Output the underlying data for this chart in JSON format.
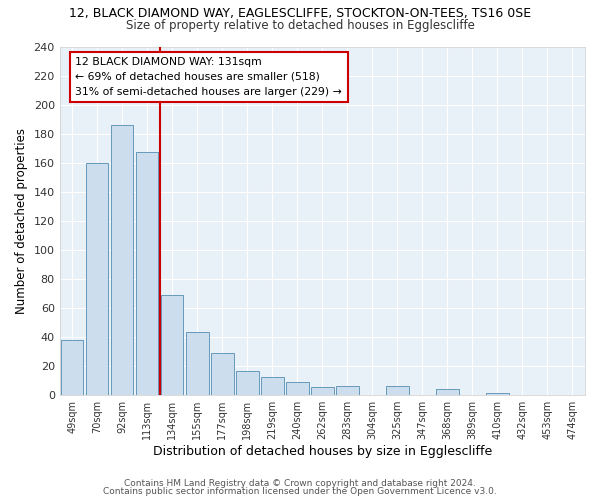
{
  "title1": "12, BLACK DIAMOND WAY, EAGLESCLIFFE, STOCKTON-ON-TEES, TS16 0SE",
  "title2": "Size of property relative to detached houses in Egglescliffe",
  "xlabel": "Distribution of detached houses by size in Egglescliffe",
  "ylabel": "Number of detached properties",
  "bin_labels": [
    "49sqm",
    "70sqm",
    "92sqm",
    "113sqm",
    "134sqm",
    "155sqm",
    "177sqm",
    "198sqm",
    "219sqm",
    "240sqm",
    "262sqm",
    "283sqm",
    "304sqm",
    "325sqm",
    "347sqm",
    "368sqm",
    "389sqm",
    "410sqm",
    "432sqm",
    "453sqm",
    "474sqm"
  ],
  "bar_heights": [
    38,
    160,
    186,
    167,
    69,
    43,
    29,
    16,
    12,
    9,
    5,
    6,
    0,
    6,
    0,
    4,
    0,
    1,
    0,
    0,
    0
  ],
  "bar_color": "#ccdded",
  "bar_edge_color": "#6699bb",
  "vline_color": "#cc0000",
  "annotation_line1": "12 BLACK DIAMOND WAY: 131sqm",
  "annotation_line2": "← 69% of detached houses are smaller (518)",
  "annotation_line3": "31% of semi-detached houses are larger (229) →",
  "annotation_box_color": "#ffffff",
  "annotation_box_edge": "#cc0000",
  "ylim": [
    0,
    240
  ],
  "yticks": [
    0,
    20,
    40,
    60,
    80,
    100,
    120,
    140,
    160,
    180,
    200,
    220,
    240
  ],
  "footer1": "Contains HM Land Registry data © Crown copyright and database right 2024.",
  "footer2": "Contains public sector information licensed under the Open Government Licence v3.0.",
  "bg_color": "#ffffff",
  "plot_bg_color": "#e8f0f8"
}
